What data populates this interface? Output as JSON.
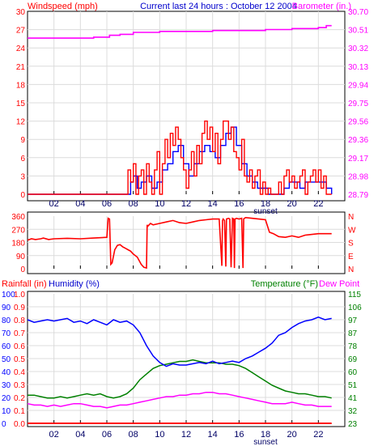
{
  "header": {
    "left_label": "Windspeed (mph)",
    "center_label": "Current last 24 hours : October 12 2004",
    "right_label": "Barometer (in.)"
  },
  "colors": {
    "frame": "#000000",
    "background": "#ffffff",
    "grid": "#dcdcdc",
    "wind_speed": "#ff0000",
    "wind_gust": "#0000ff",
    "barometer": "#ff00ff",
    "direction": "#ff0000",
    "rainfall": "#ff0000",
    "humidity": "#0000ff",
    "temperature": "#008000",
    "dew_point": "#ff00ff",
    "header_blue": "#0000cc"
  },
  "x_axis": {
    "ticks": [
      "02",
      "04",
      "06",
      "08",
      "10",
      "12",
      "14",
      "16",
      "18",
      "20",
      "22"
    ],
    "annotation": "sunset",
    "range": [
      0,
      24
    ]
  },
  "chart_data": [
    {
      "type": "line",
      "name": "wind-barometer",
      "left_axis_label": "Windspeed (mph)",
      "right_axis_label": "Barometer (in.)",
      "left_ticks": [
        "0",
        "3",
        "6",
        "9",
        "12",
        "15",
        "18",
        "21",
        "24",
        "27",
        "30"
      ],
      "right_ticks": [
        "28.79",
        "28.98",
        "29.17",
        "29.36",
        "29.56",
        "29.75",
        "29.94",
        "30.13",
        "30.32",
        "30.51",
        "30.70"
      ],
      "ylim_left": [
        0,
        30
      ],
      "ylim_right": [
        28.79,
        30.7
      ],
      "wind_speed": {
        "x": [
          0,
          7.5,
          7.6,
          7.8,
          8.0,
          8.2,
          8.4,
          8.6,
          8.8,
          9.0,
          9.2,
          9.4,
          9.6,
          9.8,
          10.0,
          10.2,
          10.4,
          10.6,
          10.8,
          11.0,
          11.2,
          11.4,
          11.6,
          11.8,
          12.0,
          12.2,
          12.4,
          12.6,
          12.8,
          13.0,
          13.2,
          13.4,
          13.6,
          13.8,
          14.0,
          14.2,
          14.4,
          14.6,
          14.8,
          15.0,
          15.2,
          15.4,
          15.6,
          15.8,
          16.0,
          16.2,
          16.4,
          16.6,
          16.8,
          17.0,
          17.2,
          17.4,
          17.6,
          17.8,
          18.0,
          18.2,
          18.4,
          18.6,
          18.8,
          19.0,
          19.2,
          19.4,
          19.6,
          19.8,
          20.0,
          20.2,
          20.4,
          20.6,
          20.8,
          21.0,
          21.2,
          21.4,
          21.6,
          21.8,
          22.0,
          22.2,
          22.4,
          22.6,
          23.0
        ],
        "y": [
          0,
          0,
          4,
          2,
          5,
          0,
          3,
          4,
          0,
          5,
          2,
          0,
          4,
          7,
          0,
          5,
          9,
          6,
          10,
          8,
          11,
          9,
          6,
          4,
          1,
          4,
          7,
          3,
          8,
          5,
          10,
          12,
          9,
          11,
          7,
          10,
          5,
          9,
          12,
          12,
          9,
          11,
          7,
          6,
          4,
          9,
          3,
          2,
          4,
          1,
          3,
          4,
          0,
          2,
          0,
          1,
          0,
          0,
          0,
          2,
          0,
          3,
          4,
          2,
          3,
          1,
          2,
          3,
          4,
          0,
          2,
          3,
          4,
          2,
          4,
          1,
          3,
          0,
          0
        ]
      },
      "wind_gust": {
        "x": [
          0,
          7.5,
          7.8,
          8.0,
          8.3,
          8.6,
          9.0,
          9.4,
          9.8,
          10.2,
          10.6,
          11.0,
          11.4,
          11.8,
          12.2,
          12.6,
          13.0,
          13.4,
          13.8,
          14.2,
          14.6,
          15.0,
          15.4,
          15.8,
          16.2,
          16.6,
          17.0,
          17.4,
          17.8,
          18.2,
          18.6,
          19.0,
          19.4,
          19.8,
          20.2,
          20.6,
          21.0,
          21.4,
          21.8,
          22.2,
          22.6,
          23.0
        ],
        "y": [
          0,
          0,
          2,
          3,
          1,
          2,
          3,
          1,
          2,
          4,
          5,
          7,
          8,
          5,
          3,
          5,
          7,
          8,
          7,
          6,
          8,
          10,
          11,
          8,
          5,
          3,
          2,
          1,
          1,
          0,
          0,
          0,
          1,
          2,
          2,
          1,
          2,
          2,
          2,
          2,
          1,
          0
        ]
      },
      "barometer": {
        "x": [
          0,
          3.0,
          5.0,
          6.2,
          7.0,
          8.0,
          9.8,
          10.0,
          12.0,
          14.0,
          16.0,
          18.0,
          20.0,
          22.0,
          22.6,
          23.0
        ],
        "y": [
          30.42,
          30.42,
          30.43,
          30.45,
          30.46,
          30.48,
          30.48,
          30.49,
          30.49,
          30.5,
          30.5,
          30.51,
          30.52,
          30.53,
          30.55,
          30.55
        ]
      }
    },
    {
      "type": "line",
      "name": "wind-direction",
      "left_ticks": [
        "0",
        "90",
        "180",
        "270",
        "360"
      ],
      "right_ticks": [
        "N",
        "E",
        "S",
        "W",
        "N"
      ],
      "ylim": [
        0,
        360
      ],
      "direction": {
        "x": [
          0,
          0.3,
          0.6,
          1.0,
          1.2,
          1.6,
          2.0,
          3.0,
          4.0,
          5.0,
          6.0,
          6.1,
          6.2,
          6.3,
          6.4,
          6.6,
          6.8,
          7.0,
          7.2,
          7.4,
          7.6,
          7.8,
          8.0,
          8.3,
          8.6,
          8.8,
          9.0,
          9.05,
          9.1,
          9.3,
          9.5,
          10.0,
          10.5,
          11.0,
          11.5,
          12.0,
          12.5,
          13.0,
          13.5,
          14.0,
          14.5,
          14.7,
          14.75,
          14.8,
          14.9,
          15.0,
          15.05,
          15.2,
          15.3,
          15.4,
          15.5,
          15.6,
          15.65,
          15.7,
          15.8,
          16.0,
          16.2,
          16.3,
          16.35,
          16.4,
          16.5,
          17.0,
          17.5,
          18.0,
          18.3,
          18.6,
          19.0,
          19.5,
          20.0,
          20.5,
          21.0,
          22.0,
          23.0
        ],
        "y": [
          195,
          205,
          200,
          205,
          210,
          200,
          205,
          208,
          205,
          210,
          215,
          345,
          340,
          30,
          40,
          130,
          160,
          165,
          150,
          140,
          130,
          120,
          100,
          80,
          30,
          10,
          5,
          300,
          290,
          310,
          300,
          310,
          320,
          330,
          315,
          310,
          320,
          330,
          335,
          340,
          340,
          20,
          330,
          340,
          330,
          15,
          340,
          345,
          340,
          10,
          345,
          340,
          5,
          340,
          345,
          340,
          345,
          5,
          340,
          345,
          350,
          345,
          340,
          335,
          250,
          240,
          220,
          215,
          225,
          215,
          230,
          240,
          240
        ]
      }
    },
    {
      "type": "line",
      "name": "rain-humidity-temperature",
      "header_left_rain": "Rainfall (in)",
      "header_left_humidity": "Humidity (%)",
      "header_right_temperature": "Temperature (°F)",
      "header_right_dewpoint": "Dew Point",
      "humidity_ticks": [
        "0",
        "10",
        "20",
        "30",
        "40",
        "50",
        "60",
        "70",
        "80",
        "90",
        "100"
      ],
      "rain_ticks": [
        "0.0",
        "0.1",
        "0.2",
        "0.3",
        "0.4",
        "0.5",
        "0.6",
        "0.7",
        "0.8",
        "0.9",
        "1.0"
      ],
      "temperature_ticks": [
        "23",
        "32",
        "41",
        "51",
        "60",
        "69",
        "78",
        "87",
        "97",
        "106",
        "115"
      ],
      "ylim_humidity": [
        0,
        100
      ],
      "ylim_rain": [
        0,
        1.0
      ],
      "ylim_temperature": [
        23,
        115
      ],
      "rainfall": {
        "x": [
          0,
          23
        ],
        "y": [
          0,
          0
        ]
      },
      "humidity": {
        "x": [
          0,
          0.5,
          1.0,
          1.5,
          2.0,
          2.5,
          3.0,
          3.5,
          4.0,
          4.5,
          5.0,
          5.5,
          6.0,
          6.5,
          7.0,
          7.5,
          8.0,
          8.5,
          9.0,
          9.5,
          10.0,
          10.5,
          11.0,
          11.5,
          12.0,
          12.5,
          13.0,
          13.5,
          14.0,
          14.5,
          15.0,
          15.5,
          16.0,
          16.5,
          17.0,
          17.5,
          18.0,
          18.5,
          19.0,
          19.5,
          20.0,
          20.5,
          21.0,
          21.5,
          22.0,
          22.5,
          23.0
        ],
        "y": [
          80,
          78,
          79,
          80,
          79,
          80,
          81,
          78,
          79,
          77,
          80,
          78,
          76,
          80,
          78,
          79,
          76,
          70,
          60,
          52,
          47,
          44,
          46,
          45,
          45,
          46,
          47,
          46,
          48,
          46,
          47,
          48,
          47,
          50,
          52,
          55,
          58,
          62,
          68,
          70,
          74,
          77,
          79,
          80,
          82,
          80,
          81
        ]
      },
      "temperature": {
        "x": [
          0,
          0.5,
          1.0,
          1.5,
          2.0,
          2.5,
          3.0,
          3.5,
          4.0,
          4.5,
          5.0,
          5.5,
          6.0,
          6.5,
          7.0,
          7.5,
          8.0,
          8.5,
          9.0,
          9.5,
          10.0,
          10.5,
          11.0,
          11.5,
          12.0,
          12.5,
          13.0,
          13.5,
          14.0,
          14.5,
          15.0,
          15.5,
          16.0,
          16.5,
          17.0,
          17.5,
          18.0,
          18.5,
          19.0,
          19.5,
          20.0,
          20.5,
          21.0,
          21.5,
          22.0,
          22.5,
          23.0
        ],
        "y": [
          43,
          43,
          42,
          41,
          41,
          42,
          41,
          42,
          43,
          44,
          43,
          44,
          42,
          41,
          42,
          44,
          48,
          54,
          58,
          62,
          64,
          65,
          66,
          67,
          67,
          68,
          67,
          66,
          66,
          66,
          65,
          65,
          64,
          62,
          59,
          56,
          53,
          50,
          48,
          46,
          45,
          44,
          44,
          43,
          42,
          42,
          41
        ]
      },
      "dew_point": {
        "x": [
          0,
          0.5,
          1.0,
          1.5,
          2.0,
          2.5,
          3.0,
          3.5,
          4.0,
          4.5,
          5.0,
          5.5,
          6.0,
          6.5,
          7.0,
          7.5,
          8.0,
          8.5,
          9.0,
          9.5,
          10.0,
          10.5,
          11.0,
          11.5,
          12.0,
          12.5,
          13.0,
          13.5,
          14.0,
          14.5,
          15.0,
          15.5,
          16.0,
          16.5,
          17.0,
          17.5,
          18.0,
          18.5,
          19.0,
          19.5,
          20.0,
          20.5,
          21.0,
          21.5,
          22.0,
          22.5,
          23.0
        ],
        "y": [
          37,
          36,
          36,
          35,
          36,
          35,
          36,
          37,
          37,
          36,
          35,
          35,
          34,
          35,
          36,
          36,
          37,
          38,
          39,
          40,
          41,
          42,
          42,
          43,
          43,
          44,
          44,
          45,
          45,
          44,
          44,
          43,
          42,
          41,
          40,
          39,
          38,
          37,
          37,
          37,
          38,
          37,
          36,
          36,
          35,
          35,
          35
        ]
      }
    }
  ]
}
